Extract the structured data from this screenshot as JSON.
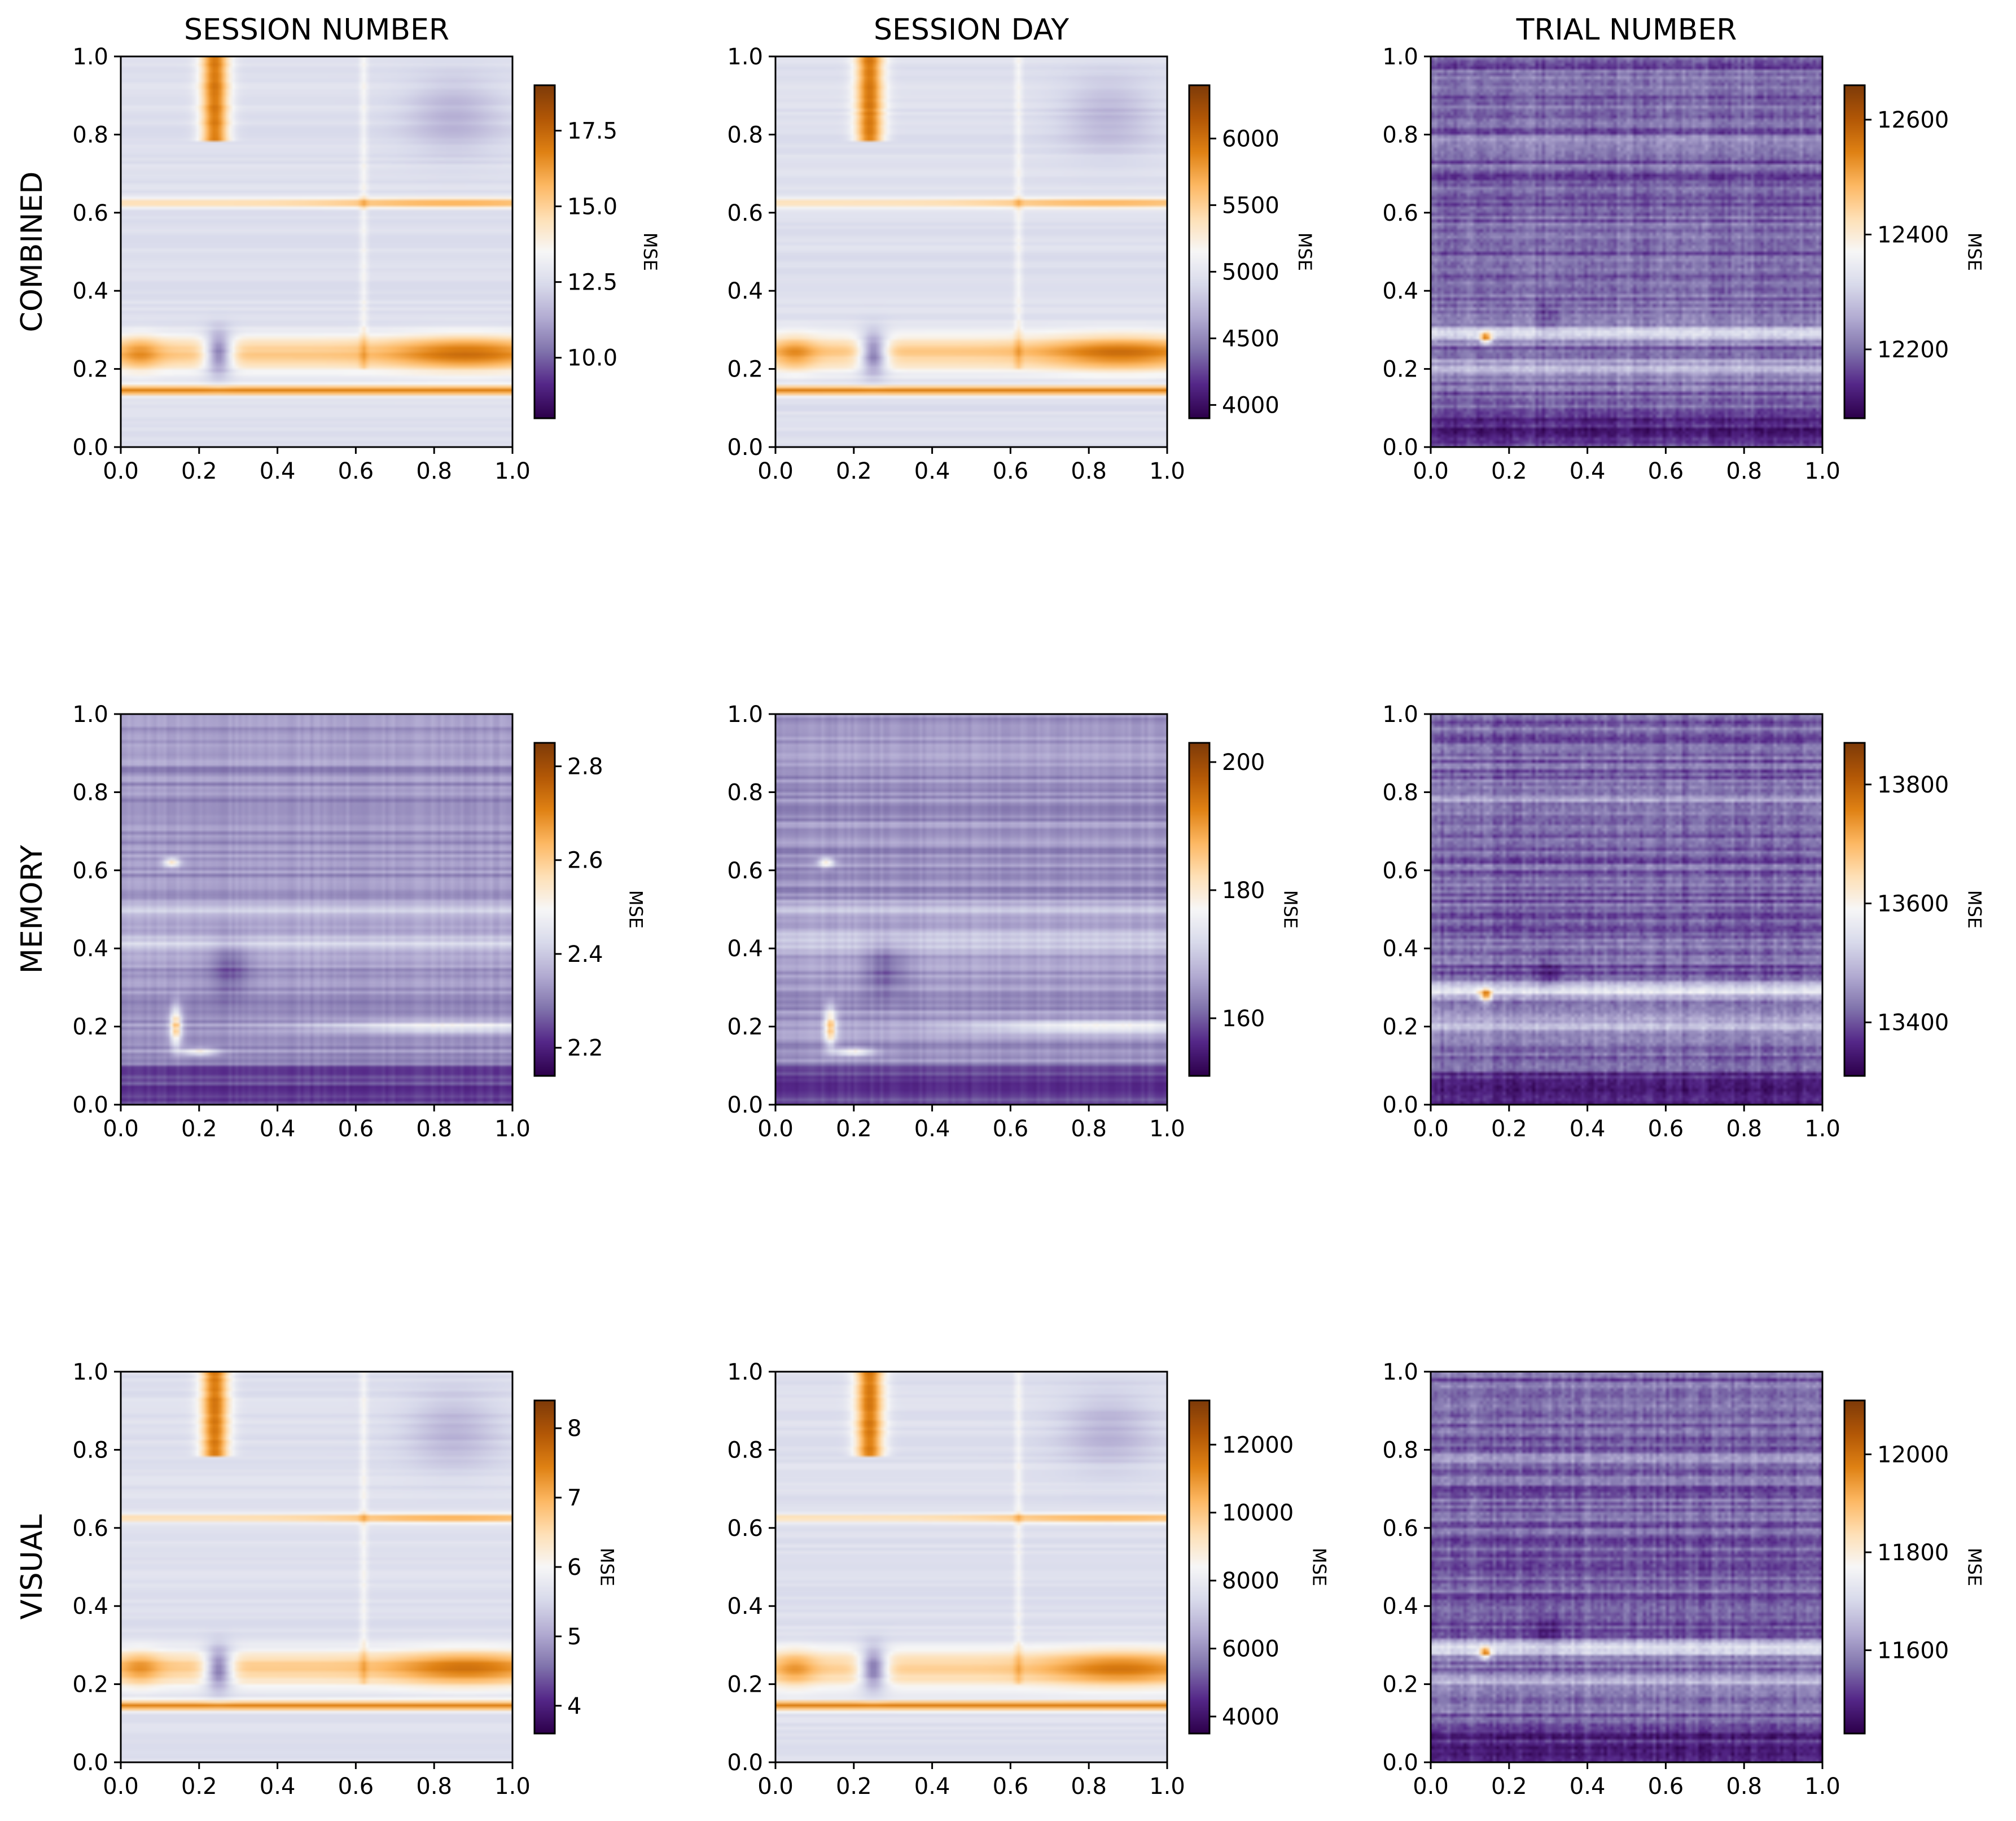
{
  "chart_data": {
    "type": "heatmap",
    "grid": false,
    "colormap": [
      "#2d004b",
      "#542788",
      "#8073ac",
      "#b2abd2",
      "#d8daeb",
      "#f7f7f7",
      "#fee0b6",
      "#fdb863",
      "#e08214",
      "#b35806",
      "#7f3b08"
    ],
    "column_titles": [
      "SESSION NUMBER",
      "SESSION DAY",
      "TRIAL NUMBER"
    ],
    "row_titles": [
      "COMBINED",
      "MEMORY",
      "VISUAL"
    ],
    "xlim": [
      0.0,
      1.0
    ],
    "ylim": [
      0.0,
      1.0
    ],
    "x_ticks": [
      "0.0",
      "0.2",
      "0.4",
      "0.6",
      "0.8",
      "1.0"
    ],
    "y_ticks": [
      "0.0",
      "0.2",
      "0.4",
      "0.6",
      "0.8",
      "1.0"
    ],
    "panels": [
      {
        "row": "COMBINED",
        "column": "SESSION NUMBER",
        "colorbar_label": "MSE",
        "clim": [
          8.0,
          19.0
        ],
        "colorbar_ticks": [
          "10.0",
          "12.5",
          "15.0",
          "17.5"
        ],
        "tick_values": [
          10.0,
          12.5,
          15.0,
          17.5
        ],
        "pattern": "session"
      },
      {
        "row": "COMBINED",
        "column": "SESSION DAY",
        "colorbar_label": "MSE",
        "clim": [
          3900,
          6400
        ],
        "colorbar_ticks": [
          "4000",
          "4500",
          "5000",
          "5500",
          "6000"
        ],
        "tick_values": [
          4000,
          4500,
          5000,
          5500,
          6000
        ],
        "pattern": "session"
      },
      {
        "row": "COMBINED",
        "column": "TRIAL NUMBER",
        "colorbar_label": "MSE",
        "clim": [
          12080,
          12660
        ],
        "colorbar_ticks": [
          "12200",
          "12400",
          "12600"
        ],
        "tick_values": [
          12200,
          12400,
          12600
        ],
        "pattern": "trial"
      },
      {
        "row": "MEMORY",
        "column": "SESSION NUMBER",
        "colorbar_label": "MSE",
        "clim": [
          2.14,
          2.85
        ],
        "colorbar_ticks": [
          "2.2",
          "2.4",
          "2.6",
          "2.8"
        ],
        "tick_values": [
          2.2,
          2.4,
          2.6,
          2.8
        ],
        "pattern": "memory"
      },
      {
        "row": "MEMORY",
        "column": "SESSION DAY",
        "colorbar_label": "MSE",
        "clim": [
          151,
          203
        ],
        "colorbar_ticks": [
          "160",
          "180",
          "200"
        ],
        "tick_values": [
          160,
          180,
          200
        ],
        "pattern": "memory"
      },
      {
        "row": "MEMORY",
        "column": "TRIAL NUMBER",
        "colorbar_label": "MSE",
        "clim": [
          13310,
          13870
        ],
        "colorbar_ticks": [
          "13400",
          "13600",
          "13800"
        ],
        "tick_values": [
          13400,
          13600,
          13800
        ],
        "pattern": "trial"
      },
      {
        "row": "VISUAL",
        "column": "SESSION NUMBER",
        "colorbar_label": "MSE",
        "clim": [
          3.6,
          8.4
        ],
        "colorbar_ticks": [
          "4",
          "5",
          "6",
          "7",
          "8"
        ],
        "tick_values": [
          4,
          5,
          6,
          7,
          8
        ],
        "pattern": "session"
      },
      {
        "row": "VISUAL",
        "column": "SESSION DAY",
        "colorbar_label": "MSE",
        "clim": [
          3500,
          13300
        ],
        "colorbar_ticks": [
          "4000",
          "6000",
          "8000",
          "10000",
          "12000"
        ],
        "tick_values": [
          4000,
          6000,
          8000,
          10000,
          12000
        ],
        "pattern": "session"
      },
      {
        "row": "VISUAL",
        "column": "TRIAL NUMBER",
        "colorbar_label": "MSE",
        "clim": [
          11430,
          12110
        ],
        "colorbar_ticks": [
          "11600",
          "11800",
          "12000"
        ],
        "tick_values": [
          11600,
          11800,
          12000
        ],
        "pattern": "trial"
      }
    ]
  }
}
